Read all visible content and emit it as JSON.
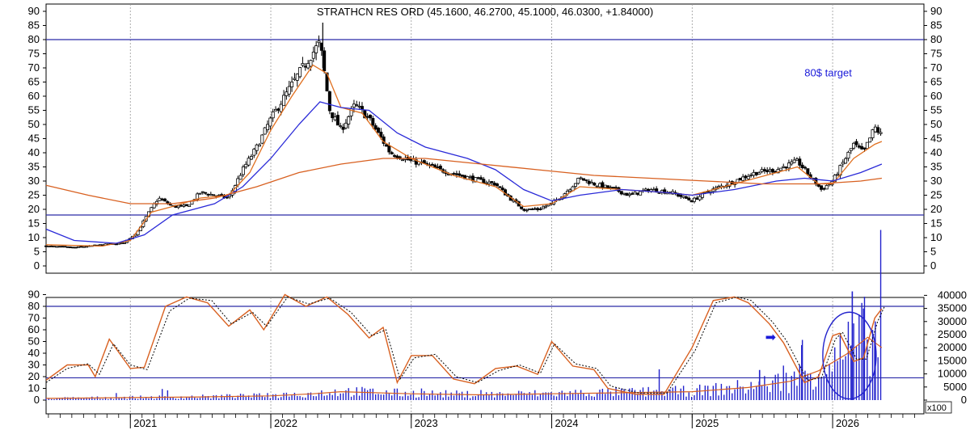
{
  "chart_data": [
    {
      "type": "candlestick",
      "title": "STRATHCN RES ORD (45.1600, 46.2700, 45.1000, 46.0300, +1.84000)",
      "yticks": [
        0,
        5,
        10,
        15,
        20,
        25,
        30,
        35,
        40,
        45,
        50,
        55,
        60,
        65,
        70,
        75,
        80,
        85,
        90
      ],
      "ylim": [
        0,
        92
      ],
      "xlim": [
        2020.4,
        2026.65
      ],
      "x_tick_labels": [
        "2021",
        "2022",
        "2023",
        "2024",
        "2025",
        "2026"
      ],
      "grid": "vertical",
      "horizontal_lines": [
        80,
        18
      ],
      "annotations": [
        {
          "text": "80$ target",
          "x": 2025.8,
          "y": 67
        }
      ],
      "price_path": [
        [
          2020.4,
          7
        ],
        [
          2020.6,
          6.5
        ],
        [
          2020.8,
          7.5
        ],
        [
          2020.95,
          8
        ],
        [
          2021.05,
          12
        ],
        [
          2021.12,
          18
        ],
        [
          2021.2,
          24
        ],
        [
          2021.3,
          21
        ],
        [
          2021.4,
          21
        ],
        [
          2021.5,
          26
        ],
        [
          2021.6,
          25
        ],
        [
          2021.7,
          24
        ],
        [
          2021.8,
          34
        ],
        [
          2021.9,
          42
        ],
        [
          2022.0,
          52
        ],
        [
          2022.1,
          60
        ],
        [
          2022.2,
          68
        ],
        [
          2022.28,
          74
        ],
        [
          2022.35,
          79
        ],
        [
          2022.42,
          55
        ],
        [
          2022.5,
          48
        ],
        [
          2022.6,
          57
        ],
        [
          2022.7,
          52
        ],
        [
          2022.75,
          48
        ],
        [
          2022.85,
          40
        ],
        [
          2023.0,
          37
        ],
        [
          2023.1,
          36
        ],
        [
          2023.2,
          34
        ],
        [
          2023.35,
          32
        ],
        [
          2023.5,
          30
        ],
        [
          2023.6,
          29
        ],
        [
          2023.7,
          24
        ],
        [
          2023.8,
          20
        ],
        [
          2023.9,
          20
        ],
        [
          2024.0,
          22
        ],
        [
          2024.1,
          26
        ],
        [
          2024.2,
          31
        ],
        [
          2024.3,
          29
        ],
        [
          2024.45,
          27
        ],
        [
          2024.55,
          25
        ],
        [
          2024.7,
          27
        ],
        [
          2024.85,
          26
        ],
        [
          2025.0,
          23
        ],
        [
          2025.1,
          26
        ],
        [
          2025.2,
          28
        ],
        [
          2025.3,
          30
        ],
        [
          2025.45,
          33
        ],
        [
          2025.6,
          34
        ],
        [
          2025.75,
          37
        ],
        [
          2025.85,
          31
        ],
        [
          2025.92,
          27
        ],
        [
          2026.0,
          30
        ],
        [
          2026.08,
          37
        ],
        [
          2026.15,
          43
        ],
        [
          2026.22,
          40
        ],
        [
          2026.3,
          49
        ],
        [
          2026.35,
          46
        ]
      ],
      "series": [
        {
          "name": "",
          "color": "#e07020",
          "values": [
            [
              2020.4,
              7.5
            ],
            [
              2020.8,
              7
            ],
            [
              2021.0,
              9
            ],
            [
              2021.15,
              19
            ],
            [
              2021.3,
              21
            ],
            [
              2021.5,
              24
            ],
            [
              2021.7,
              25
            ],
            [
              2021.85,
              33
            ],
            [
              2022.0,
              48
            ],
            [
              2022.15,
              60
            ],
            [
              2022.3,
              71
            ],
            [
              2022.4,
              68
            ],
            [
              2022.5,
              56
            ],
            [
              2022.65,
              54
            ],
            [
              2022.8,
              44
            ],
            [
              2023.0,
              38
            ],
            [
              2023.3,
              32
            ],
            [
              2023.6,
              28
            ],
            [
              2023.8,
              21
            ],
            [
              2024.0,
              22
            ],
            [
              2024.2,
              28
            ],
            [
              2024.5,
              27
            ],
            [
              2024.8,
              26
            ],
            [
              2025.0,
              25
            ],
            [
              2025.3,
              29
            ],
            [
              2025.6,
              33
            ],
            [
              2025.75,
              35
            ],
            [
              2025.9,
              29
            ],
            [
              2026.0,
              29
            ],
            [
              2026.15,
              38
            ],
            [
              2026.3,
              43
            ],
            [
              2026.35,
              44
            ]
          ]
        },
        {
          "name": "",
          "color": "#2a2ad8",
          "values": [
            [
              2020.4,
              13
            ],
            [
              2020.6,
              9
            ],
            [
              2020.9,
              8
            ],
            [
              2021.1,
              11
            ],
            [
              2021.3,
              18
            ],
            [
              2021.6,
              22
            ],
            [
              2021.8,
              28
            ],
            [
              2022.0,
              38
            ],
            [
              2022.2,
              50
            ],
            [
              2022.35,
              58
            ],
            [
              2022.5,
              56
            ],
            [
              2022.7,
              55
            ],
            [
              2022.9,
              47
            ],
            [
              2023.1,
              42
            ],
            [
              2023.4,
              38
            ],
            [
              2023.6,
              34
            ],
            [
              2023.8,
              27
            ],
            [
              2024.0,
              23
            ],
            [
              2024.2,
              25
            ],
            [
              2024.5,
              27
            ],
            [
              2024.8,
              26
            ],
            [
              2025.0,
              25
            ],
            [
              2025.3,
              27
            ],
            [
              2025.6,
              30
            ],
            [
              2025.8,
              31
            ],
            [
              2026.0,
              30
            ],
            [
              2026.2,
              33
            ],
            [
              2026.35,
              36
            ]
          ]
        },
        {
          "name": "",
          "color": "#d86020",
          "values": [
            [
              2020.4,
              28.5
            ],
            [
              2020.7,
              25
            ],
            [
              2021.0,
              22
            ],
            [
              2021.3,
              22
            ],
            [
              2021.6,
              24
            ],
            [
              2021.9,
              28
            ],
            [
              2022.2,
              33
            ],
            [
              2022.5,
              36
            ],
            [
              2022.8,
              38
            ],
            [
              2023.1,
              38
            ],
            [
              2023.5,
              36
            ],
            [
              2023.9,
              34
            ],
            [
              2024.3,
              32
            ],
            [
              2024.7,
              31
            ],
            [
              2025.1,
              30
            ],
            [
              2025.5,
              29
            ],
            [
              2025.9,
              29
            ],
            [
              2026.2,
              30
            ],
            [
              2026.35,
              31
            ]
          ]
        }
      ]
    },
    {
      "type": "line",
      "yticks_left": [
        0,
        10,
        20,
        30,
        40,
        50,
        60,
        70,
        80,
        90
      ],
      "yticks_right": [
        "0",
        "5000",
        "10000",
        "15000",
        "20000",
        "25000",
        "30000",
        "35000",
        "40000"
      ],
      "ylim": [
        0,
        95
      ],
      "volume_unit": "x100",
      "horizontal_lines": [
        80,
        19
      ],
      "marker": {
        "symbol": "➡",
        "x": 2025.52,
        "y": 50
      },
      "highlight_ellipse": {
        "cx": 2026.12,
        "cy": 38,
        "rx": 0.19,
        "ry": 37
      },
      "oscillator": {
        "name": "",
        "values": [
          [
            2020.4,
            17
          ],
          [
            2020.55,
            30
          ],
          [
            2020.7,
            30
          ],
          [
            2020.75,
            20
          ],
          [
            2020.85,
            52
          ],
          [
            2021.0,
            27
          ],
          [
            2021.1,
            28
          ],
          [
            2021.25,
            80
          ],
          [
            2021.4,
            88
          ],
          [
            2021.55,
            83
          ],
          [
            2021.7,
            63
          ],
          [
            2021.85,
            77
          ],
          [
            2021.95,
            60
          ],
          [
            2022.1,
            90
          ],
          [
            2022.25,
            80
          ],
          [
            2022.4,
            88
          ],
          [
            2022.55,
            73
          ],
          [
            2022.7,
            53
          ],
          [
            2022.8,
            62
          ],
          [
            2022.9,
            15
          ],
          [
            2023.0,
            38
          ],
          [
            2023.15,
            38
          ],
          [
            2023.3,
            18
          ],
          [
            2023.45,
            14
          ],
          [
            2023.6,
            27
          ],
          [
            2023.75,
            29
          ],
          [
            2023.9,
            22
          ],
          [
            2024.0,
            50
          ],
          [
            2024.15,
            29
          ],
          [
            2024.3,
            26
          ],
          [
            2024.4,
            10
          ],
          [
            2024.6,
            5
          ],
          [
            2024.8,
            5
          ],
          [
            2025.0,
            45
          ],
          [
            2025.15,
            85
          ],
          [
            2025.3,
            88
          ],
          [
            2025.4,
            83
          ],
          [
            2025.55,
            65
          ],
          [
            2025.65,
            49
          ],
          [
            2025.8,
            15
          ],
          [
            2025.9,
            20
          ],
          [
            2026.0,
            55
          ],
          [
            2026.05,
            57
          ],
          [
            2026.15,
            33
          ],
          [
            2026.22,
            36
          ],
          [
            2026.3,
            70
          ],
          [
            2026.35,
            78
          ]
        ]
      },
      "signal": {
        "name": "",
        "values": [
          [
            2020.4,
            15
          ],
          [
            2020.55,
            27
          ],
          [
            2020.7,
            31
          ],
          [
            2020.78,
            22
          ],
          [
            2020.88,
            48
          ],
          [
            2021.0,
            30
          ],
          [
            2021.12,
            26
          ],
          [
            2021.28,
            76
          ],
          [
            2021.42,
            87
          ],
          [
            2021.58,
            85
          ],
          [
            2021.72,
            65
          ],
          [
            2021.87,
            75
          ],
          [
            2021.97,
            63
          ],
          [
            2022.12,
            88
          ],
          [
            2022.27,
            82
          ],
          [
            2022.42,
            87
          ],
          [
            2022.57,
            75
          ],
          [
            2022.72,
            55
          ],
          [
            2022.82,
            60
          ],
          [
            2022.92,
            18
          ],
          [
            2023.02,
            36
          ],
          [
            2023.17,
            39
          ],
          [
            2023.32,
            20
          ],
          [
            2023.47,
            15
          ],
          [
            2023.62,
            25
          ],
          [
            2023.77,
            30
          ],
          [
            2023.92,
            23
          ],
          [
            2024.02,
            48
          ],
          [
            2024.17,
            31
          ],
          [
            2024.32,
            27
          ],
          [
            2024.42,
            12
          ],
          [
            2024.62,
            6
          ],
          [
            2024.82,
            6
          ],
          [
            2025.02,
            42
          ],
          [
            2025.17,
            83
          ],
          [
            2025.32,
            88
          ],
          [
            2025.42,
            85
          ],
          [
            2025.57,
            67
          ],
          [
            2025.67,
            51
          ],
          [
            2025.82,
            17
          ],
          [
            2025.92,
            19
          ],
          [
            2026.02,
            52
          ],
          [
            2026.07,
            58
          ],
          [
            2026.17,
            35
          ],
          [
            2026.24,
            35
          ],
          [
            2026.32,
            67
          ],
          [
            2026.37,
            80
          ]
        ]
      },
      "volume_path": [
        [
          2020.4,
          800
        ],
        [
          2021.0,
          1200
        ],
        [
          2021.5,
          1500
        ],
        [
          2022.0,
          2000
        ],
        [
          2022.3,
          3000
        ],
        [
          2022.5,
          4000
        ],
        [
          2023.0,
          3000
        ],
        [
          2023.5,
          2500
        ],
        [
          2024.0,
          3000
        ],
        [
          2024.5,
          3500
        ],
        [
          2025.0,
          4000
        ],
        [
          2025.4,
          6000
        ],
        [
          2025.7,
          9000
        ],
        [
          2025.9,
          14000
        ],
        [
          2026.1,
          22000
        ],
        [
          2026.25,
          30000
        ],
        [
          2026.35,
          25000
        ]
      ],
      "volume_spikes": [
        [
          2025.48,
          11500
        ],
        [
          2025.78,
          21000
        ],
        [
          2026.14,
          41500
        ],
        [
          2026.22,
          35000
        ],
        [
          2026.3,
          23000
        ]
      ]
    }
  ]
}
